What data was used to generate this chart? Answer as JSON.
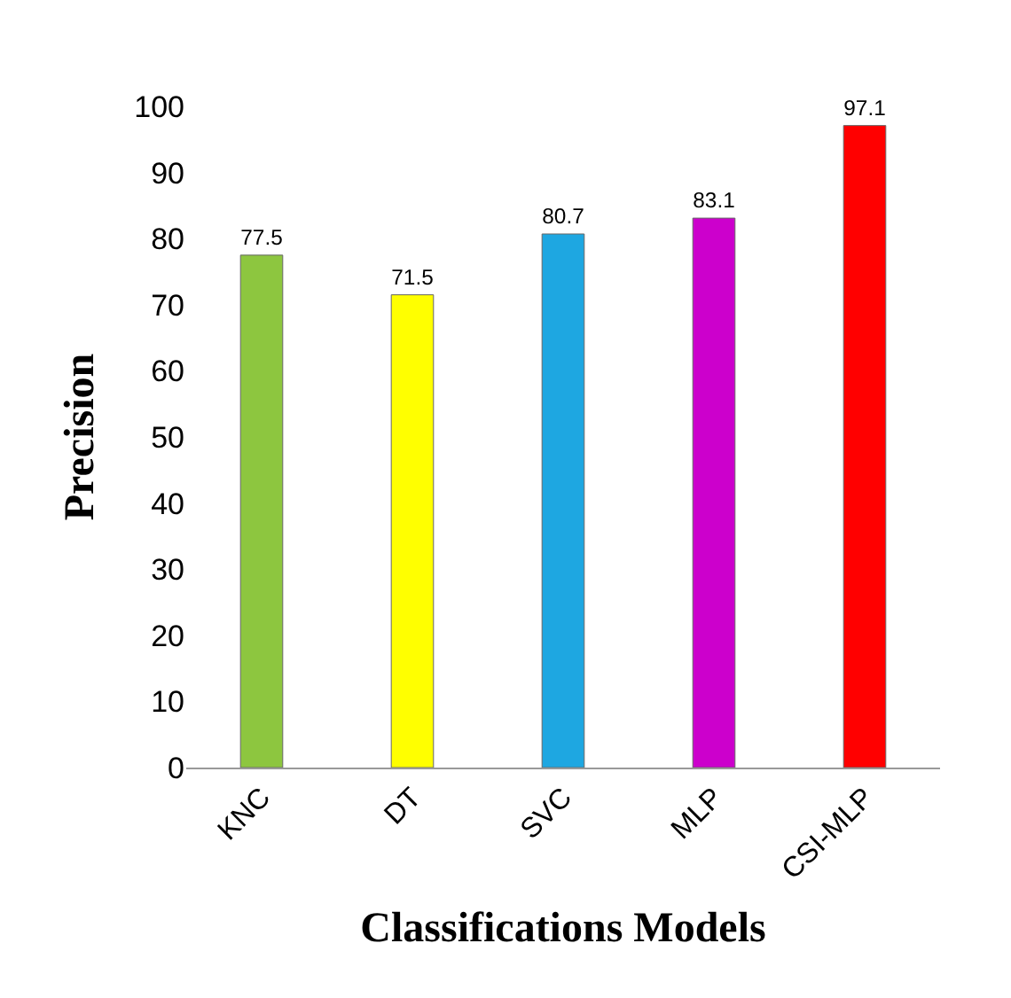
{
  "chart_data": {
    "type": "bar",
    "xlabel": "Classifications Models",
    "ylabel": "Precision",
    "categories": [
      "KNC",
      "DT",
      "SVC",
      "MLP",
      "CSI-MLP"
    ],
    "values": [
      77.5,
      71.5,
      80.7,
      83.1,
      97.1
    ],
    "colors": [
      "#8dc63f",
      "#ffff00",
      "#1ea7e1",
      "#cc00cc",
      "#ff0000"
    ],
    "ylim": [
      0,
      100
    ],
    "yticks": [
      0,
      10,
      20,
      30,
      40,
      50,
      60,
      70,
      80,
      90,
      100
    ],
    "data_labels": true
  }
}
